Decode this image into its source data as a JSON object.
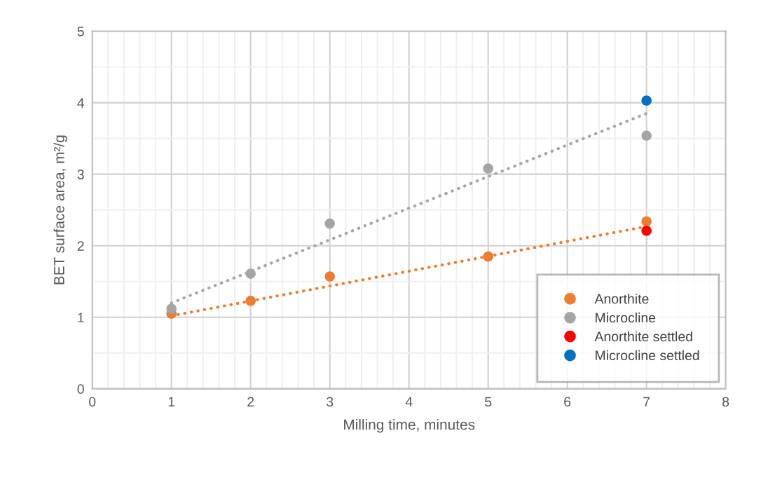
{
  "chart_data": {
    "type": "scatter",
    "xlabel": "Milling time, minutes",
    "ylabel": "BET surface area, m²/g",
    "xlim": [
      0,
      8
    ],
    "ylim": [
      0,
      5
    ],
    "xticks": [
      0,
      {
        "value": 0.2,
        "label": null
      },
      {
        "value": 0.4,
        "label": null
      },
      {
        "value": 0.6,
        "label": null
      },
      {
        "value": 0.8,
        "label": null
      },
      1,
      {
        "value": 1.2,
        "label": null
      },
      {
        "value": 1.4,
        "label": null
      },
      {
        "value": 1.6,
        "label": null
      },
      {
        "value": 1.8,
        "label": null
      },
      2,
      {
        "value": 2.2,
        "label": null
      },
      {
        "value": 2.4,
        "label": null
      },
      {
        "value": 2.6,
        "label": null
      },
      {
        "value": 2.8,
        "label": null
      },
      3,
      {
        "value": 3.2,
        "label": null
      },
      {
        "value": 3.4,
        "label": null
      },
      {
        "value": 3.6,
        "label": null
      },
      {
        "value": 3.8,
        "label": null
      },
      4,
      {
        "value": 4.2,
        "label": null
      },
      {
        "value": 4.4,
        "label": null
      },
      {
        "value": 4.6,
        "label": null
      },
      {
        "value": 4.8,
        "label": null
      },
      5,
      {
        "value": 5.2,
        "label": null
      },
      {
        "value": 5.4,
        "label": null
      },
      {
        "value": 5.6,
        "label": null
      },
      {
        "value": 5.8,
        "label": null
      },
      6,
      {
        "value": 6.2,
        "label": null
      },
      {
        "value": 6.4,
        "label": null
      },
      {
        "value": 6.6,
        "label": null
      },
      {
        "value": 6.8,
        "label": null
      },
      7,
      {
        "value": 7.2,
        "label": null
      },
      {
        "value": 7.4,
        "label": null
      },
      {
        "value": 7.6,
        "label": null
      },
      {
        "value": 7.8,
        "label": null
      },
      8
    ],
    "yticks": [
      0,
      {
        "value": 0.5,
        "label": null
      },
      1,
      {
        "value": 1.5,
        "label": null
      },
      2,
      {
        "value": 2.5,
        "label": null
      },
      3,
      {
        "value": 3.5,
        "label": null
      },
      4,
      {
        "value": 4.5,
        "label": null
      },
      5
    ],
    "grid": true,
    "legend": "bottom right",
    "marker": "circle",
    "series": [
      {
        "name": "Anorthite",
        "color": "#ed7d31",
        "x": [
          1,
          2,
          3,
          5,
          7
        ],
        "values": [
          1.05,
          1.23,
          1.57,
          1.85,
          2.34
        ]
      },
      {
        "name": "Microcline",
        "color": "#a5a5a5",
        "x": [
          1,
          2,
          3,
          5,
          7
        ],
        "values": [
          1.12,
          1.61,
          2.31,
          3.08,
          3.54
        ]
      },
      {
        "name": "Anorthite settled",
        "color": "#ff0000",
        "x": [
          7
        ],
        "values": [
          2.21
        ]
      },
      {
        "name": "Microcline settled",
        "color": "#0070c0",
        "x": [
          7
        ],
        "values": [
          4.03
        ]
      },
      {
        "type": "line",
        "line_style": "dotted",
        "marker": "none",
        "color": "#ed7d31",
        "x": [
          1,
          7
        ],
        "values": [
          1.02,
          2.27
        ]
      },
      {
        "type": "line",
        "line_style": "dotted",
        "marker": "none",
        "color": "#a5a5a5",
        "x": [
          1,
          7
        ],
        "values": [
          1.2,
          3.85
        ]
      }
    ]
  }
}
